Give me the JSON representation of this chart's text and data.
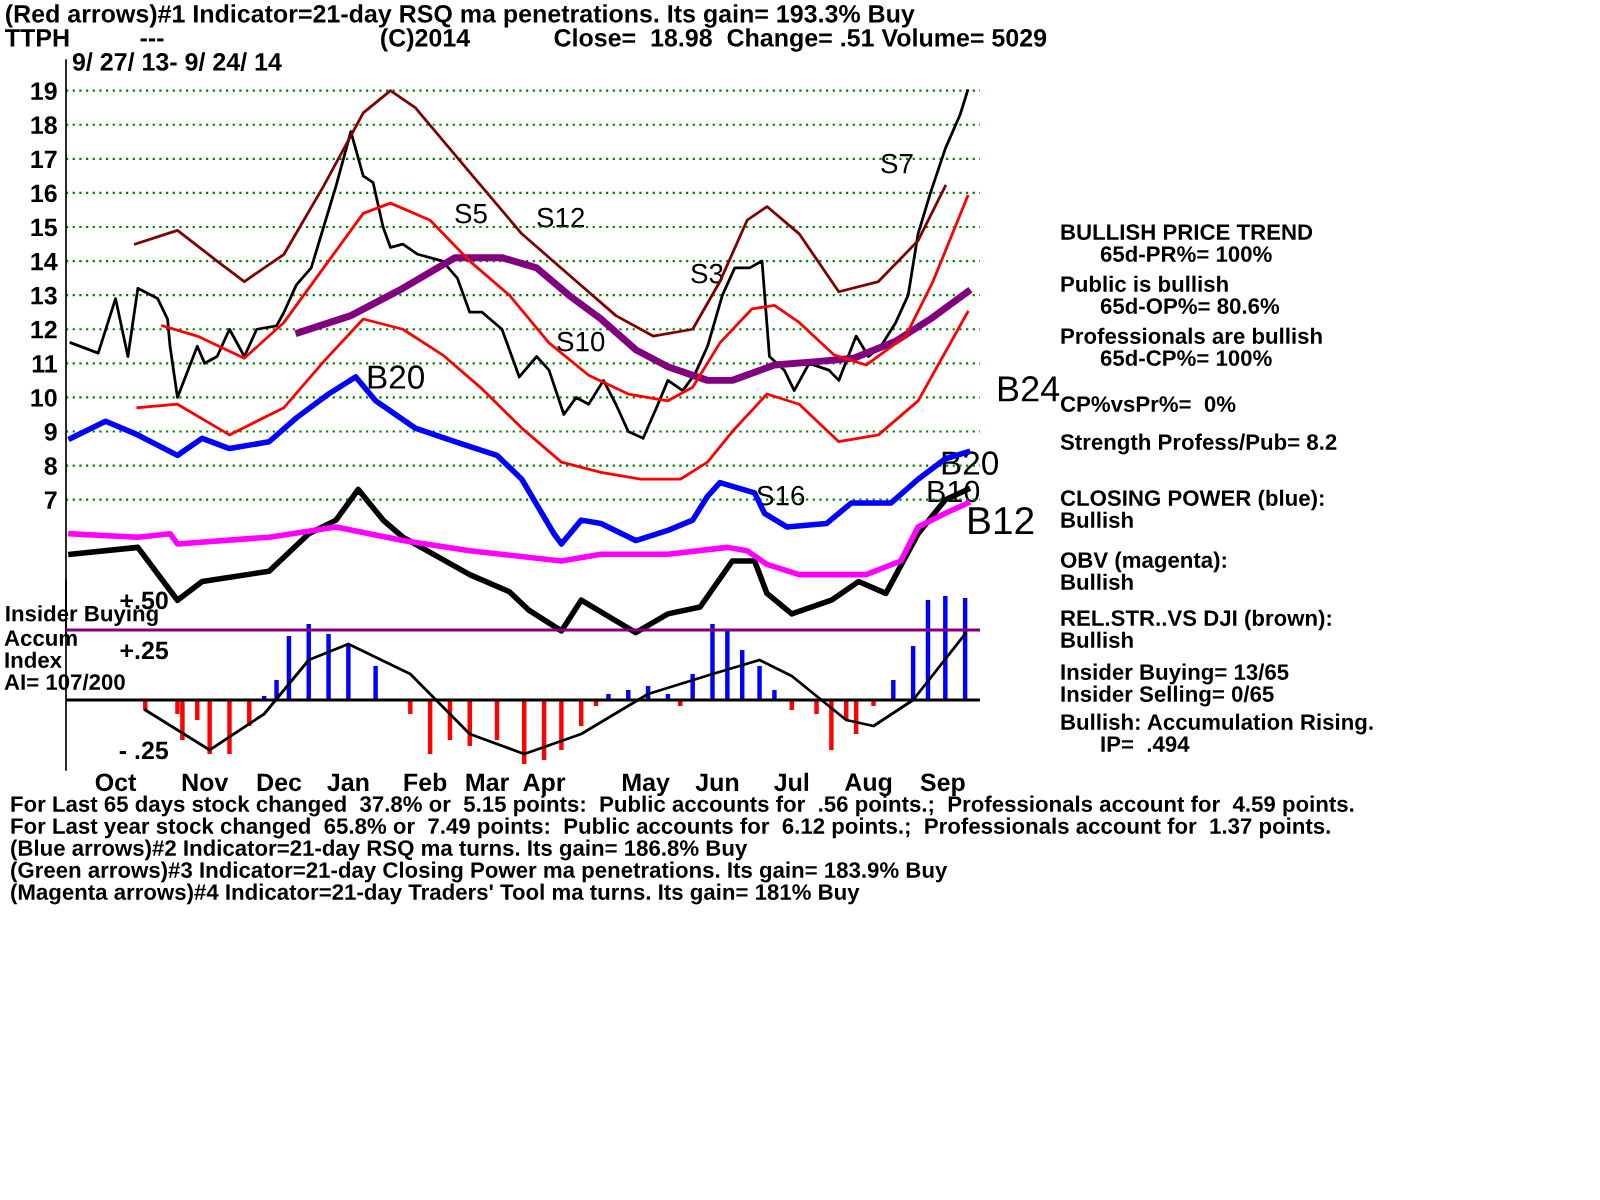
{
  "chart_data": [
    {
      "type": "line",
      "title": "(Red arrows)#1 Indicator=21-day RSQ ma penetrations. Its gain= 193.3% Buy",
      "subtitle": "TTPH          ---                               (C)2014            Close=  18.98  Change= .51 Volume= 5029",
      "x": [
        "2013-09-27",
        "2013-10-08",
        "2013-10-15",
        "2013-10-20",
        "2013-10-24",
        "2013-11-01",
        "2013-11-05",
        "2013-11-06",
        "2013-11-09",
        "2013-11-17",
        "2013-11-20",
        "2013-11-25",
        "2013-11-30",
        "2013-12-06",
        "2013-12-11",
        "2013-12-19",
        "2013-12-22",
        "2013-12-27",
        "2014-01-02",
        "2014-01-07",
        "2014-01-12",
        "2014-01-18",
        "2014-01-23",
        "2014-01-27",
        "2014-01-31",
        "2014-02-03",
        "2014-02-08",
        "2014-02-14",
        "2014-02-24",
        "2014-03-02",
        "2014-03-07",
        "2014-03-12",
        "2014-03-20",
        "2014-03-27",
        "2014-04-03",
        "2014-04-08",
        "2014-04-14",
        "2014-04-19",
        "2014-04-24",
        "2014-04-30",
        "2014-05-05",
        "2014-05-10",
        "2014-05-16",
        "2014-05-22",
        "2014-05-26",
        "2014-06-01",
        "2014-06-06",
        "2014-06-11",
        "2014-06-17",
        "2014-06-22",
        "2014-06-28",
        "2014-07-03",
        "2014-07-06",
        "2014-07-12",
        "2014-07-16",
        "2014-07-22",
        "2014-07-30",
        "2014-08-03",
        "2014-08-10",
        "2014-08-15",
        "2014-08-20",
        "2014-08-26",
        "2014-08-31",
        "2014-09-04",
        "2014-09-09",
        "2014-09-15",
        "2014-09-21",
        "2014-09-24"
      ],
      "series": [
        {
          "color": "#000000",
          "values": [
            11.6,
            11.3,
            12.9,
            11.2,
            13.2,
            12.9,
            12.3,
            11.5,
            10.0,
            11.5,
            11.0,
            11.2,
            12.0,
            11.2,
            12.0,
            12.1,
            12.5,
            13.3,
            13.8,
            15.0,
            16.2,
            17.8,
            16.5,
            16.3,
            15.0,
            14.4,
            14.5,
            14.2,
            14.0,
            13.5,
            12.5,
            12.5,
            12.0,
            10.6,
            11.2,
            10.8,
            9.5,
            10.0,
            9.8,
            10.5,
            9.8,
            9.0,
            8.8,
            9.8,
            10.5,
            10.2,
            10.7,
            11.5,
            13.0,
            13.8,
            13.8,
            14.0,
            11.2,
            10.8,
            10.2,
            11.0,
            10.8,
            10.5,
            11.8,
            11.2,
            11.5,
            12.2,
            13.0,
            14.8,
            16.0,
            17.3,
            18.3,
            19.0
          ]
        },
        {
          "color": "#800080",
          "x": [
            "2013-12-28",
            "2014-01-18",
            "2014-02-08",
            "2014-03-01",
            "2014-03-20",
            "2014-04-03",
            "2014-04-16",
            "2014-04-29",
            "2014-05-13",
            "2014-05-26",
            "2014-06-11",
            "2014-06-21",
            "2014-07-08",
            "2014-07-25",
            "2014-08-09",
            "2014-08-26",
            "2014-09-10",
            "2014-09-24"
          ],
          "values": [
            11.9,
            12.4,
            13.2,
            14.1,
            14.1,
            13.8,
            13.0,
            12.3,
            11.4,
            10.9,
            10.5,
            10.5,
            10.95,
            11.05,
            11.15,
            11.65,
            12.35,
            13.1
          ]
        },
        {
          "color": "#800000",
          "x": [
            "2013-10-23",
            "2013-11-09",
            "2013-11-25",
            "2013-12-06",
            "2013-12-22",
            "2014-01-07",
            "2014-01-23",
            "2014-02-03",
            "2014-02-13",
            "2014-03-07",
            "2014-03-28",
            "2014-04-16",
            "2014-05-05",
            "2014-05-20",
            "2014-06-05",
            "2014-06-16",
            "2014-06-27",
            "2014-07-05",
            "2014-07-18",
            "2014-08-03",
            "2014-08-19",
            "2014-09-04",
            "2014-09-15"
          ],
          "values": [
            14.5,
            14.9,
            14.0,
            13.4,
            14.2,
            16.2,
            18.35,
            19.0,
            18.5,
            16.6,
            14.8,
            13.6,
            12.4,
            11.8,
            12.0,
            13.4,
            15.2,
            15.6,
            14.8,
            13.1,
            13.4,
            14.6,
            16.2
          ]
        },
        {
          "color": "#ff0000",
          "x": [
            "2013-11-03",
            "2013-11-17",
            "2013-12-06",
            "2013-12-22",
            "2014-01-07",
            "2014-01-23",
            "2014-02-03",
            "2014-02-19",
            "2014-03-07",
            "2014-03-23",
            "2014-04-08",
            "2014-04-24",
            "2014-05-10",
            "2014-05-26",
            "2014-06-05",
            "2014-06-16",
            "2014-06-29",
            "2014-07-08",
            "2014-07-18",
            "2014-08-01",
            "2014-08-14",
            "2014-08-30",
            "2014-09-10",
            "2014-09-24"
          ],
          "values": [
            12.1,
            11.8,
            11.15,
            12.2,
            13.8,
            15.4,
            15.7,
            15.2,
            14.0,
            13.0,
            11.6,
            10.65,
            10.1,
            9.9,
            10.3,
            11.6,
            12.6,
            12.7,
            12.2,
            11.25,
            10.95,
            11.8,
            13.4,
            15.9
          ]
        },
        {
          "color": "#ff0000",
          "x": [
            "2013-10-24",
            "2013-11-09",
            "2013-11-30",
            "2013-12-22",
            "2014-01-07",
            "2014-01-23",
            "2014-02-08",
            "2014-02-24",
            "2014-03-12",
            "2014-03-28",
            "2014-04-13",
            "2014-04-29",
            "2014-05-15",
            "2014-05-31",
            "2014-06-11",
            "2014-06-21",
            "2014-07-05",
            "2014-07-18",
            "2014-08-03",
            "2014-08-19",
            "2014-09-04",
            "2014-09-24"
          ],
          "values": [
            9.7,
            9.8,
            8.9,
            9.7,
            11.05,
            12.3,
            12.0,
            11.25,
            10.25,
            9.1,
            8.1,
            7.8,
            7.6,
            7.6,
            8.1,
            9.0,
            10.1,
            9.8,
            8.7,
            8.9,
            9.9,
            12.5
          ]
        },
        {
          "color": "#0000ff",
          "x": [
            "2013-09-27",
            "2013-10-11",
            "2013-10-24",
            "2013-11-09",
            "2013-11-19",
            "2013-11-30",
            "2013-12-16",
            "2013-12-27",
            "2014-01-09",
            "2014-01-20",
            "2014-01-28",
            "2014-02-13",
            "2014-03-01",
            "2014-03-18",
            "2014-03-28",
            "2014-04-10",
            "2014-04-13",
            "2014-04-21",
            "2014-04-29",
            "2014-05-13",
            "2014-05-26",
            "2014-06-05",
            "2014-06-11",
            "2014-06-16",
            "2014-06-30",
            "2014-07-04",
            "2014-07-13",
            "2014-07-29",
            "2014-08-08",
            "2014-08-24",
            "2014-09-04",
            "2014-09-15",
            "2014-09-24"
          ],
          "values": [
            8.8,
            9.3,
            8.9,
            8.3,
            8.8,
            8.5,
            8.7,
            9.4,
            10.1,
            10.6,
            9.9,
            9.1,
            8.7,
            8.3,
            7.6,
            6.0,
            5.7,
            6.4,
            6.3,
            5.8,
            6.1,
            6.4,
            7.1,
            7.5,
            7.2,
            6.6,
            6.2,
            6.3,
            6.9,
            6.9,
            7.6,
            8.2,
            8.4
          ]
        },
        {
          "color": "#000000",
          "x": [
            "2013-09-27",
            "2013-10-24",
            "2013-11-09",
            "2013-11-19",
            "2013-12-16",
            "2014-01-01",
            "2014-01-12",
            "2014-01-21",
            "2014-01-31",
            "2014-02-08",
            "2014-03-07",
            "2014-03-23",
            "2014-03-31",
            "2014-04-13",
            "2014-04-21",
            "2014-05-13",
            "2014-05-26",
            "2014-06-08",
            "2014-06-21",
            "2014-06-30",
            "2014-07-05",
            "2014-07-15",
            "2014-07-31",
            "2014-08-11",
            "2014-08-22",
            "2014-09-04",
            "2014-09-15",
            "2014-09-24"
          ],
          "values": [
            5.4,
            5.6,
            4.05,
            4.6,
            4.9,
            6.0,
            6.4,
            7.3,
            6.4,
            5.9,
            4.8,
            4.3,
            3.75,
            3.15,
            4.05,
            3.1,
            3.65,
            3.85,
            5.2,
            5.2,
            4.25,
            3.65,
            4.05,
            4.6,
            4.25,
            6.0,
            7.0,
            7.3
          ]
        },
        {
          "color": "#ff00ff",
          "x": [
            "2013-09-27",
            "2013-10-24",
            "2013-11-06",
            "2013-11-09",
            "2013-12-16",
            "2014-01-12",
            "2014-02-08",
            "2014-03-07",
            "2014-04-13",
            "2014-04-29",
            "2014-05-26",
            "2014-06-19",
            "2014-06-27",
            "2014-07-05",
            "2014-07-18",
            "2014-08-14",
            "2014-08-28",
            "2014-09-04",
            "2014-09-15",
            "2014-09-24"
          ],
          "values": [
            6.0,
            5.9,
            6.0,
            5.7,
            5.9,
            6.2,
            5.8,
            5.5,
            5.2,
            5.4,
            5.4,
            5.6,
            5.5,
            5.1,
            4.8,
            4.8,
            5.2,
            6.2,
            6.6,
            6.9
          ]
        }
      ],
      "xlim": [
        "2013-09-25",
        "2014-09-29"
      ],
      "ylim": [
        3.0,
        19.9
      ],
      "yticks": [
        7,
        8,
        9,
        10,
        11,
        12,
        13,
        14,
        15,
        16,
        17,
        18,
        19
      ],
      "grid": "y",
      "tick_labels": "y",
      "annotations": [
        "9/ 27/ 13- 9/ 24/ 14",
        "BULLISH PRICE TREND",
        "65d-PR%= 100%",
        "Public is bullish",
        "65d-OP%= 80.6%",
        "Professionals are bullish",
        "65d-CP%= 100%",
        "CP%vsPr%=  0%",
        "Strength Profess/Pub= 8.2",
        "CLOSING POWER (blue):",
        "Bullish",
        "OBV (magenta):",
        "Bullish",
        "REL.STR..VS DJI (brown):",
        "Bullish",
        "Bullish: Accumulation Rising.",
        "IP=  .494",
        "For Last 65 days stock changed  37.8% or  5.15 points:  Public accounts for  .56 points.;  Professionals account for  4.59 points.",
        "For Last year stock changed  65.8% or  7.49 points:  Public accounts for  6.12 points.;  Professionals account for  1.37 points.",
        "(Blue arrows)#2 Indicator=21-day RSQ ma turns. Its gain= 186.8% Buy",
        "(Green arrows)#3 Indicator=21-day Closing Power ma penetrations. Its gain= 183.9% Buy",
        "(Magenta arrows)#4 Indicator=21-day Traders' Tool ma turns. Its gain= 181% Buy",
        "Insider Buying= 13/65",
        "Insider Selling= 0/65",
        "S5",
        "S12",
        "S10",
        "S3",
        "S7",
        "B20",
        "S16",
        "B24",
        "B20",
        "B10",
        "B12"
      ]
    },
    {
      "type": "bar",
      "x": [
        "2013-10-27",
        "2013-11-09",
        "2013-11-11",
        "2013-11-17",
        "2013-11-22",
        "2013-11-30",
        "2013-12-08",
        "2013-12-14",
        "2013-12-19",
        "2013-12-24",
        "2014-01-01",
        "2014-01-09",
        "2014-01-17",
        "2014-01-28",
        "2014-02-05",
        "2014-02-11",
        "2014-02-19",
        "2014-02-27",
        "2014-03-07",
        "2014-03-18",
        "2014-03-29",
        "2014-04-06",
        "2014-04-13",
        "2014-04-21",
        "2014-04-27",
        "2014-05-02",
        "2014-05-10",
        "2014-05-18",
        "2014-05-26",
        "2014-05-31",
        "2014-06-05",
        "2014-06-13",
        "2014-06-19",
        "2014-06-25",
        "2014-07-02",
        "2014-07-08",
        "2014-07-15",
        "2014-07-25",
        "2014-07-31",
        "2014-08-06",
        "2014-08-10",
        "2014-08-17",
        "2014-08-25",
        "2014-09-02",
        "2014-09-08",
        "2014-09-15",
        "2014-09-23"
      ],
      "series": [
        {
          "values": [
            -0.05,
            -0.07,
            -0.2,
            -0.1,
            -0.27,
            -0.27,
            -0.13,
            0.02,
            0.1,
            0.32,
            0.38,
            0.33,
            0.28,
            0.17,
            0.0,
            -0.07,
            -0.27,
            -0.2,
            -0.23,
            -0.2,
            -0.32,
            -0.3,
            -0.25,
            -0.13,
            -0.03,
            0.03,
            0.05,
            0.07,
            0.03,
            -0.03,
            0.13,
            0.38,
            0.35,
            0.25,
            0.17,
            0.05,
            -0.05,
            -0.07,
            -0.25,
            -0.1,
            -0.17,
            -0.03,
            0.1,
            0.27,
            0.5,
            0.52,
            0.51
          ],
          "colors": [
            "#ff0000",
            "#ff0000",
            "#ff0000",
            "#ff0000",
            "#ff0000",
            "#ff0000",
            "#ff0000",
            "#0000ff",
            "#0000ff",
            "#0000ff",
            "#0000ff",
            "#0000ff",
            "#0000ff",
            "#0000ff",
            "#0000ff",
            "#ff0000",
            "#ff0000",
            "#ff0000",
            "#ff0000",
            "#ff0000",
            "#ff0000",
            "#ff0000",
            "#ff0000",
            "#ff0000",
            "#ff0000",
            "#0000ff",
            "#0000ff",
            "#0000ff",
            "#0000ff",
            "#ff0000",
            "#0000ff",
            "#0000ff",
            "#0000ff",
            "#0000ff",
            "#0000ff",
            "#0000ff",
            "#ff0000",
            "#ff0000",
            "#ff0000",
            "#ff0000",
            "#ff0000",
            "#ff0000",
            "#0000ff",
            "#0000ff",
            "#0000ff",
            "#0000ff",
            "#0000ff"
          ]
        },
        {
          "type": "line",
          "color": "#000000",
          "x": [
            "2013-10-27",
            "2013-11-22",
            "2013-12-14",
            "2014-01-01",
            "2014-01-17",
            "2014-02-11",
            "2014-03-07",
            "2014-03-29",
            "2014-04-21",
            "2014-05-18",
            "2014-06-13",
            "2014-07-02",
            "2014-07-15",
            "2014-08-06",
            "2014-08-17",
            "2014-09-02",
            "2014-09-23"
          ],
          "values": [
            -0.05,
            -0.25,
            -0.07,
            0.2,
            0.28,
            0.13,
            -0.17,
            -0.27,
            -0.17,
            0.03,
            0.13,
            0.2,
            0.12,
            -0.1,
            -0.13,
            0.0,
            0.33
          ]
        }
      ],
      "xlim": [
        "2013-09-25",
        "2014-09-29"
      ],
      "xticks": [
        {
          "value": "2013-10-15",
          "label": "Oct"
        },
        {
          "value": "2013-11-20",
          "label": "Nov"
        },
        {
          "value": "2013-12-20",
          "label": "Dec"
        },
        {
          "value": "2014-01-17",
          "label": "Jan"
        },
        {
          "value": "2014-02-17",
          "label": "Feb"
        },
        {
          "value": "2014-03-14",
          "label": "Mar"
        },
        {
          "value": "2014-04-06",
          "label": "Apr"
        },
        {
          "value": "2014-05-17",
          "label": "May"
        },
        {
          "value": "2014-06-15",
          "label": "Jun"
        },
        {
          "value": "2014-07-15",
          "label": "Jul"
        },
        {
          "value": "2014-08-15",
          "label": "Aug"
        },
        {
          "value": "2014-09-14",
          "label": "Sep"
        }
      ],
      "ylim": [
        -0.35,
        0.6
      ],
      "yticks": [
        {
          "value": 0.5,
          "label": "+.50"
        },
        {
          "value": 0.25,
          "label": "+.25"
        },
        {
          "value": -0.25,
          "label": "- .25"
        }
      ],
      "ref_lines": [
        {
          "axis": "y",
          "value": 0.35,
          "label": "Insider Buying",
          "color": "#800080"
        },
        {
          "axis": "y",
          "value": 0,
          "color": "#000000",
          "label": null
        }
      ],
      "annotations": [
        "Accum",
        "Index",
        "AI= 107/200"
      ]
    }
  ]
}
